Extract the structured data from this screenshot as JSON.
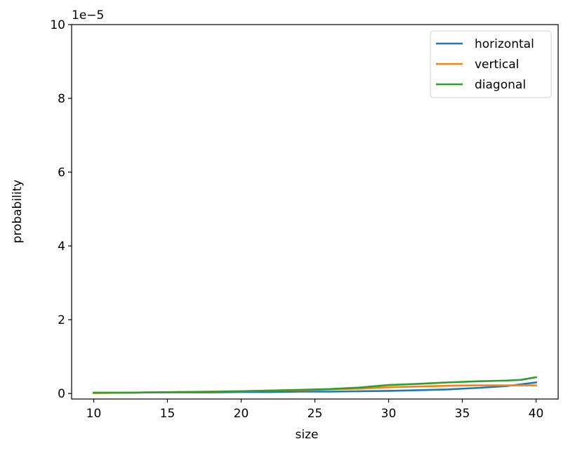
{
  "chart_data": {
    "type": "line",
    "title": "",
    "xlabel": "size",
    "ylabel": "probability",
    "y_scale_label": "1e−5",
    "xlim": [
      8.5,
      41.5
    ],
    "ylim": [
      -0.15,
      10
    ],
    "x_ticks": [
      10,
      15,
      20,
      25,
      30,
      35,
      40
    ],
    "y_ticks": [
      0,
      2,
      4,
      6,
      8,
      10
    ],
    "grid": false,
    "legend_position": "top-right",
    "x": [
      10,
      12,
      14,
      16,
      18,
      20,
      22,
      24,
      26,
      28,
      30,
      32,
      34,
      36,
      38,
      39,
      40
    ],
    "series": [
      {
        "name": "horizontal",
        "color": "#1f77b4",
        "values": [
          0.02,
          0.02,
          0.03,
          0.03,
          0.03,
          0.04,
          0.04,
          0.05,
          0.05,
          0.06,
          0.07,
          0.09,
          0.11,
          0.15,
          0.2,
          0.25,
          0.3
        ]
      },
      {
        "name": "vertical",
        "color": "#ff7f0e",
        "values": [
          0.01,
          0.02,
          0.03,
          0.04,
          0.05,
          0.06,
          0.08,
          0.09,
          0.11,
          0.13,
          0.17,
          0.19,
          0.21,
          0.22,
          0.22,
          0.22,
          0.22
        ]
      },
      {
        "name": "diagonal",
        "color": "#2ca02c",
        "values": [
          0.02,
          0.02,
          0.03,
          0.04,
          0.05,
          0.06,
          0.08,
          0.1,
          0.12,
          0.16,
          0.23,
          0.26,
          0.3,
          0.33,
          0.35,
          0.37,
          0.44
        ]
      }
    ]
  }
}
